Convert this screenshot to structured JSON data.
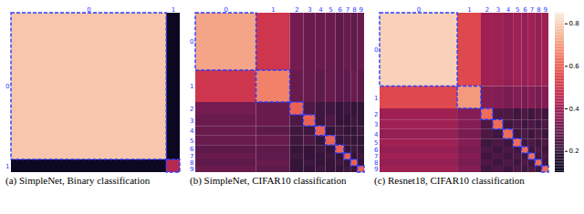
{
  "chart_data": [
    {
      "type": "heatmap",
      "title": "(a) SimpleNet, Binary classification",
      "group_labels": [
        "0",
        "1"
      ],
      "group_sizes": [
        92,
        8
      ],
      "cells": [
        [
          0.78,
          0.12
        ],
        [
          0.12,
          0.45
        ]
      ],
      "color_range": [
        0.1,
        0.85
      ]
    },
    {
      "type": "heatmap",
      "title": "(b) SimpleNet, CIFAR10 classification",
      "group_labels": [
        "0",
        "1",
        "2",
        "3",
        "4",
        "5",
        "6",
        "7",
        "8",
        "9"
      ],
      "group_sizes": [
        36,
        20,
        8,
        7,
        6,
        6,
        5,
        4,
        4,
        4
      ],
      "cells": [
        [
          0.72,
          0.5,
          0.32,
          0.3,
          0.3,
          0.3,
          0.28,
          0.3,
          0.28,
          0.3
        ],
        [
          0.5,
          0.66,
          0.3,
          0.3,
          0.28,
          0.3,
          0.28,
          0.28,
          0.3,
          0.28
        ],
        [
          0.32,
          0.3,
          0.6,
          0.25,
          0.22,
          0.22,
          0.2,
          0.22,
          0.2,
          0.2
        ],
        [
          0.3,
          0.3,
          0.25,
          0.6,
          0.22,
          0.25,
          0.2,
          0.2,
          0.22,
          0.2
        ],
        [
          0.3,
          0.28,
          0.22,
          0.22,
          0.6,
          0.2,
          0.22,
          0.2,
          0.2,
          0.22
        ],
        [
          0.3,
          0.3,
          0.22,
          0.25,
          0.2,
          0.6,
          0.2,
          0.22,
          0.2,
          0.2
        ],
        [
          0.28,
          0.28,
          0.2,
          0.2,
          0.22,
          0.2,
          0.6,
          0.2,
          0.22,
          0.2
        ],
        [
          0.3,
          0.28,
          0.22,
          0.2,
          0.2,
          0.22,
          0.2,
          0.6,
          0.2,
          0.22
        ],
        [
          0.28,
          0.3,
          0.2,
          0.22,
          0.2,
          0.2,
          0.22,
          0.2,
          0.6,
          0.2
        ],
        [
          0.3,
          0.28,
          0.2,
          0.2,
          0.22,
          0.2,
          0.2,
          0.22,
          0.2,
          0.6
        ]
      ],
      "color_range": [
        0.1,
        0.85
      ]
    },
    {
      "type": "heatmap",
      "title": "(c) Resnet18, CIFAR10 classification",
      "group_labels": [
        "0",
        "1",
        "2",
        "3",
        "4",
        "5",
        "6",
        "7",
        "8",
        "9"
      ],
      "group_sizes": [
        46,
        14,
        7,
        6,
        6,
        5,
        4,
        4,
        4,
        4
      ],
      "cells": [
        [
          0.8,
          0.55,
          0.4,
          0.4,
          0.38,
          0.4,
          0.38,
          0.4,
          0.38,
          0.4
        ],
        [
          0.55,
          0.7,
          0.35,
          0.35,
          0.33,
          0.35,
          0.33,
          0.35,
          0.33,
          0.35
        ],
        [
          0.4,
          0.35,
          0.62,
          0.25,
          0.25,
          0.22,
          0.25,
          0.22,
          0.25,
          0.22
        ],
        [
          0.4,
          0.35,
          0.25,
          0.62,
          0.22,
          0.25,
          0.22,
          0.25,
          0.22,
          0.25
        ],
        [
          0.38,
          0.33,
          0.25,
          0.22,
          0.62,
          0.22,
          0.25,
          0.22,
          0.25,
          0.22
        ],
        [
          0.4,
          0.35,
          0.22,
          0.25,
          0.22,
          0.62,
          0.22,
          0.25,
          0.22,
          0.25
        ],
        [
          0.38,
          0.33,
          0.25,
          0.22,
          0.25,
          0.22,
          0.62,
          0.22,
          0.25,
          0.22
        ],
        [
          0.4,
          0.35,
          0.22,
          0.25,
          0.22,
          0.25,
          0.22,
          0.62,
          0.22,
          0.25
        ],
        [
          0.38,
          0.33,
          0.25,
          0.22,
          0.25,
          0.22,
          0.25,
          0.22,
          0.62,
          0.22
        ],
        [
          0.4,
          0.35,
          0.22,
          0.25,
          0.22,
          0.25,
          0.22,
          0.25,
          0.22,
          0.62
        ]
      ],
      "color_range": [
        0.1,
        0.85
      ],
      "color_ticks": [
        0.2,
        0.4,
        0.6,
        0.8
      ]
    }
  ]
}
